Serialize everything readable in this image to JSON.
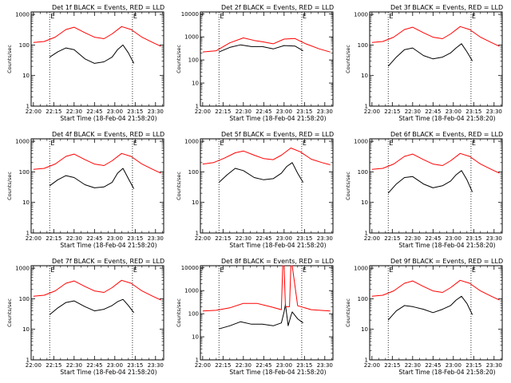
{
  "colors": {
    "events": "#000000",
    "lld": "#ff0000",
    "frame": "#000000"
  },
  "chart_data": [
    {
      "type": "line",
      "detector": "1f",
      "title": "Det 1f BLACK = Events, RED = LLD",
      "xlabel": "Start Time (18-Feb-04 21:58:20)",
      "ylabel": "Counts/sec",
      "x_ticks": [
        "22:00",
        "22:15",
        "22:30",
        "22:45",
        "23:00",
        "23:15",
        "23:30"
      ],
      "y_ticks": [
        "1",
        "10",
        "100",
        "1000"
      ],
      "ylim": [
        1,
        1200
      ],
      "scale": "log",
      "markers": [
        {
          "label": "E",
          "x": "22:12"
        },
        {
          "label": "E",
          "x": "23:13"
        }
      ],
      "series": [
        {
          "name": "Events",
          "color": "#000000",
          "x": [
            "22:12",
            "22:18",
            "22:24",
            "22:30",
            "22:38",
            "22:45",
            "22:52",
            "22:58",
            "23:02",
            "23:06",
            "23:10",
            "23:14"
          ],
          "values": [
            40,
            60,
            80,
            70,
            35,
            25,
            28,
            40,
            70,
            100,
            55,
            25
          ]
        },
        {
          "name": "LLD",
          "color": "#ff0000",
          "x": [
            "22:00",
            "22:08",
            "22:16",
            "22:24",
            "22:30",
            "22:38",
            "22:45",
            "22:52",
            "22:58",
            "23:05",
            "23:12",
            "23:20",
            "23:28",
            "23:34"
          ],
          "values": [
            120,
            130,
            180,
            320,
            380,
            250,
            180,
            160,
            230,
            400,
            320,
            180,
            120,
            90
          ]
        }
      ]
    },
    {
      "type": "line",
      "detector": "2f",
      "title": "Det 2f BLACK = Events, RED = LLD",
      "xlabel": "Start Time (18-Feb-04 21:58:20)",
      "ylabel": "Counts/sec",
      "x_ticks": [
        "22:00",
        "22:15",
        "22:30",
        "22:45",
        "23:00",
        "23:15",
        "23:30"
      ],
      "y_ticks": [
        "1",
        "10",
        "100",
        "1000",
        "10000"
      ],
      "ylim": [
        1,
        12000
      ],
      "scale": "log",
      "markers": [
        {
          "label": "E",
          "x": "22:12"
        },
        {
          "label": "E",
          "x": "23:13"
        }
      ],
      "series": [
        {
          "name": "Events",
          "color": "#000000",
          "x": [
            "22:12",
            "22:20",
            "22:28",
            "22:36",
            "22:44",
            "22:52",
            "23:00",
            "23:08",
            "23:14"
          ],
          "values": [
            220,
            350,
            450,
            380,
            380,
            300,
            420,
            400,
            250
          ]
        },
        {
          "name": "LLD",
          "color": "#ff0000",
          "x": [
            "22:00",
            "22:10",
            "22:20",
            "22:30",
            "22:38",
            "22:45",
            "22:52",
            "23:00",
            "23:08",
            "23:16",
            "23:26",
            "23:34"
          ],
          "values": [
            220,
            250,
            550,
            900,
            700,
            600,
            500,
            800,
            850,
            500,
            300,
            220
          ]
        }
      ]
    },
    {
      "type": "line",
      "detector": "3f",
      "title": "Det 3f BLACK = Events, RED = LLD",
      "xlabel": "Start Time (18-Feb-04 21:58:20)",
      "ylabel": "Counts/sec",
      "x_ticks": [
        "22:00",
        "22:15",
        "22:30",
        "22:45",
        "23:00",
        "23:15",
        "23:30"
      ],
      "y_ticks": [
        "1",
        "10",
        "100",
        "1000"
      ],
      "ylim": [
        1,
        1200
      ],
      "scale": "log",
      "markers": [
        {
          "label": "E",
          "x": "22:12"
        },
        {
          "label": "E",
          "x": "23:13"
        }
      ],
      "series": [
        {
          "name": "Events",
          "color": "#000000",
          "x": [
            "22:12",
            "22:18",
            "22:24",
            "22:30",
            "22:38",
            "22:45",
            "22:52",
            "22:58",
            "23:02",
            "23:06",
            "23:10",
            "23:14"
          ],
          "values": [
            20,
            40,
            70,
            80,
            45,
            35,
            40,
            55,
            80,
            110,
            60,
            30
          ]
        },
        {
          "name": "LLD",
          "color": "#ff0000",
          "x": [
            "22:00",
            "22:08",
            "22:16",
            "22:24",
            "22:30",
            "22:38",
            "22:45",
            "22:52",
            "22:58",
            "23:05",
            "23:12",
            "23:20",
            "23:28",
            "23:34"
          ],
          "values": [
            120,
            130,
            180,
            320,
            380,
            250,
            180,
            160,
            230,
            400,
            320,
            180,
            120,
            90
          ]
        }
      ]
    },
    {
      "type": "line",
      "detector": "4f",
      "title": "Det 4f BLACK = Events, RED = LLD",
      "xlabel": "Start Time (18-Feb-04 21:58:20)",
      "ylabel": "Counts/sec",
      "x_ticks": [
        "22:00",
        "22:15",
        "22:30",
        "22:45",
        "23:00",
        "23:15",
        "23:30"
      ],
      "y_ticks": [
        "1",
        "10",
        "100",
        "1000"
      ],
      "ylim": [
        1,
        1200
      ],
      "scale": "log",
      "markers": [
        {
          "label": "E",
          "x": "22:12"
        },
        {
          "label": "E",
          "x": "23:13"
        }
      ],
      "series": [
        {
          "name": "Events",
          "color": "#000000",
          "x": [
            "22:12",
            "22:18",
            "22:24",
            "22:30",
            "22:38",
            "22:45",
            "22:52",
            "22:58",
            "23:02",
            "23:06",
            "23:10",
            "23:14"
          ],
          "values": [
            35,
            55,
            75,
            65,
            38,
            30,
            32,
            45,
            90,
            130,
            60,
            28
          ]
        },
        {
          "name": "LLD",
          "color": "#ff0000",
          "x": [
            "22:00",
            "22:08",
            "22:16",
            "22:24",
            "22:30",
            "22:38",
            "22:45",
            "22:52",
            "22:58",
            "23:05",
            "23:12",
            "23:20",
            "23:28",
            "23:34"
          ],
          "values": [
            120,
            130,
            180,
            320,
            380,
            250,
            180,
            160,
            230,
            400,
            320,
            180,
            120,
            90
          ]
        }
      ]
    },
    {
      "type": "line",
      "detector": "5f",
      "title": "Det 5f BLACK = Events, RED = LLD",
      "xlabel": "Start Time (18-Feb-04 21:58:20)",
      "ylabel": "Counts/sec",
      "x_ticks": [
        "22:00",
        "22:15",
        "22:30",
        "22:45",
        "23:00",
        "23:15",
        "23:30"
      ],
      "y_ticks": [
        "1",
        "10",
        "100",
        "1000"
      ],
      "ylim": [
        1,
        1200
      ],
      "scale": "log",
      "markers": [
        {
          "label": "E",
          "x": "22:12"
        },
        {
          "label": "E",
          "x": "23:13"
        }
      ],
      "series": [
        {
          "name": "Events",
          "color": "#000000",
          "x": [
            "22:12",
            "22:18",
            "22:24",
            "22:30",
            "22:38",
            "22:45",
            "22:52",
            "22:58",
            "23:02",
            "23:06",
            "23:10",
            "23:14"
          ],
          "values": [
            45,
            80,
            130,
            110,
            65,
            55,
            60,
            90,
            150,
            200,
            90,
            45
          ]
        },
        {
          "name": "LLD",
          "color": "#ff0000",
          "x": [
            "22:00",
            "22:08",
            "22:16",
            "22:24",
            "22:30",
            "22:38",
            "22:45",
            "22:52",
            "22:58",
            "23:05",
            "23:12",
            "23:20",
            "23:28",
            "23:34"
          ],
          "values": [
            180,
            200,
            280,
            420,
            480,
            350,
            270,
            250,
            350,
            600,
            450,
            260,
            200,
            170
          ]
        }
      ]
    },
    {
      "type": "line",
      "detector": "6f",
      "title": "Det 6f BLACK = Events, RED = LLD",
      "xlabel": "Start Time (18-Feb-04 21:58:20)",
      "ylabel": "Counts/sec",
      "x_ticks": [
        "22:00",
        "22:15",
        "22:30",
        "22:45",
        "23:00",
        "23:15",
        "23:30"
      ],
      "y_ticks": [
        "1",
        "10",
        "100",
        "1000"
      ],
      "ylim": [
        1,
        1200
      ],
      "scale": "log",
      "markers": [
        {
          "label": "E",
          "x": "22:12"
        },
        {
          "label": "E",
          "x": "23:13"
        }
      ],
      "series": [
        {
          "name": "Events",
          "color": "#000000",
          "x": [
            "22:12",
            "22:18",
            "22:24",
            "22:30",
            "22:38",
            "22:45",
            "22:52",
            "22:58",
            "23:02",
            "23:06",
            "23:10",
            "23:14"
          ],
          "values": [
            20,
            40,
            65,
            70,
            40,
            30,
            35,
            50,
            80,
            110,
            55,
            22
          ]
        },
        {
          "name": "LLD",
          "color": "#ff0000",
          "x": [
            "22:00",
            "22:08",
            "22:16",
            "22:24",
            "22:30",
            "22:38",
            "22:45",
            "22:52",
            "22:58",
            "23:05",
            "23:12",
            "23:20",
            "23:28",
            "23:34"
          ],
          "values": [
            120,
            130,
            180,
            320,
            380,
            250,
            180,
            160,
            230,
            400,
            320,
            180,
            120,
            90
          ]
        }
      ]
    },
    {
      "type": "line",
      "detector": "7f",
      "title": "Det 7f BLACK = Events, RED = LLD",
      "xlabel": "Start Time (18-Feb-04 21:58:20)",
      "ylabel": "Counts/sec",
      "x_ticks": [
        "22:00",
        "22:15",
        "22:30",
        "22:45",
        "23:00",
        "23:15",
        "23:30"
      ],
      "y_ticks": [
        "1",
        "10",
        "100",
        "1000"
      ],
      "ylim": [
        1,
        1200
      ],
      "scale": "log",
      "markers": [
        {
          "label": "E",
          "x": "22:12"
        },
        {
          "label": "E",
          "x": "23:13"
        }
      ],
      "series": [
        {
          "name": "Events",
          "color": "#000000",
          "x": [
            "22:12",
            "22:18",
            "22:24",
            "22:30",
            "22:38",
            "22:45",
            "22:52",
            "22:58",
            "23:02",
            "23:06",
            "23:10",
            "23:14"
          ],
          "values": [
            30,
            50,
            75,
            85,
            55,
            40,
            45,
            60,
            80,
            95,
            60,
            35
          ]
        },
        {
          "name": "LLD",
          "color": "#ff0000",
          "x": [
            "22:00",
            "22:08",
            "22:16",
            "22:24",
            "22:30",
            "22:38",
            "22:45",
            "22:52",
            "22:58",
            "23:05",
            "23:12",
            "23:20",
            "23:28",
            "23:34"
          ],
          "values": [
            120,
            130,
            180,
            320,
            380,
            250,
            180,
            160,
            230,
            400,
            320,
            180,
            120,
            90
          ]
        }
      ]
    },
    {
      "type": "line",
      "detector": "8f",
      "title": "Det 8f BLACK = Events, RED = LLD",
      "xlabel": "Start Time (18-Feb-04 21:58:20)",
      "ylabel": "Counts/sec",
      "x_ticks": [
        "22:00",
        "22:15",
        "22:30",
        "22:45",
        "23:00",
        "23:15",
        "23:30"
      ],
      "y_ticks": [
        "1",
        "10",
        "100",
        "1000",
        "10000"
      ],
      "ylim": [
        1,
        12000
      ],
      "scale": "log",
      "markers": [
        {
          "label": "E",
          "x": "22:12"
        },
        {
          "label": "E",
          "x": "23:13"
        }
      ],
      "series": [
        {
          "name": "Events",
          "color": "#000000",
          "x": [
            "22:12",
            "22:20",
            "22:28",
            "22:36",
            "22:44",
            "22:52",
            "22:58",
            "23:00",
            "23:01",
            "23:03",
            "23:05",
            "23:06",
            "23:10",
            "23:14"
          ],
          "values": [
            22,
            30,
            45,
            35,
            35,
            30,
            40,
            120,
            250,
            30,
            80,
            120,
            60,
            40
          ]
        },
        {
          "name": "LLD",
          "color": "#ff0000",
          "x": [
            "22:00",
            "22:10",
            "22:20",
            "22:30",
            "22:40",
            "22:50",
            "22:58",
            "22:59",
            "23:00",
            "23:01",
            "23:04",
            "23:05",
            "23:06",
            "23:10",
            "23:20",
            "23:34"
          ],
          "values": [
            130,
            140,
            180,
            280,
            280,
            200,
            150,
            12000,
            12000,
            200,
            200,
            12000,
            12000,
            220,
            150,
            130
          ]
        }
      ]
    },
    {
      "type": "line",
      "detector": "9f",
      "title": "Det 9f BLACK = Events, RED = LLD",
      "xlabel": "Start Time (18-Feb-04 21:58:20)",
      "ylabel": "Counts/sec",
      "x_ticks": [
        "22:00",
        "22:15",
        "22:30",
        "22:45",
        "23:00",
        "23:15",
        "23:30"
      ],
      "y_ticks": [
        "1",
        "10",
        "100",
        "1000"
      ],
      "ylim": [
        1,
        1200
      ],
      "scale": "log",
      "markers": [
        {
          "label": "E",
          "x": "22:12"
        },
        {
          "label": "E",
          "x": "23:13"
        }
      ],
      "series": [
        {
          "name": "Events",
          "color": "#000000",
          "x": [
            "22:12",
            "22:18",
            "22:24",
            "22:30",
            "22:38",
            "22:45",
            "22:52",
            "22:58",
            "23:02",
            "23:06",
            "23:10",
            "23:14"
          ],
          "values": [
            20,
            40,
            60,
            55,
            45,
            35,
            45,
            60,
            90,
            120,
            70,
            30
          ]
        },
        {
          "name": "LLD",
          "color": "#ff0000",
          "x": [
            "22:00",
            "22:08",
            "22:16",
            "22:24",
            "22:30",
            "22:38",
            "22:45",
            "22:52",
            "22:58",
            "23:05",
            "23:12",
            "23:20",
            "23:28",
            "23:34"
          ],
          "values": [
            120,
            130,
            180,
            320,
            380,
            250,
            180,
            160,
            230,
            400,
            320,
            180,
            120,
            90
          ]
        }
      ]
    }
  ]
}
